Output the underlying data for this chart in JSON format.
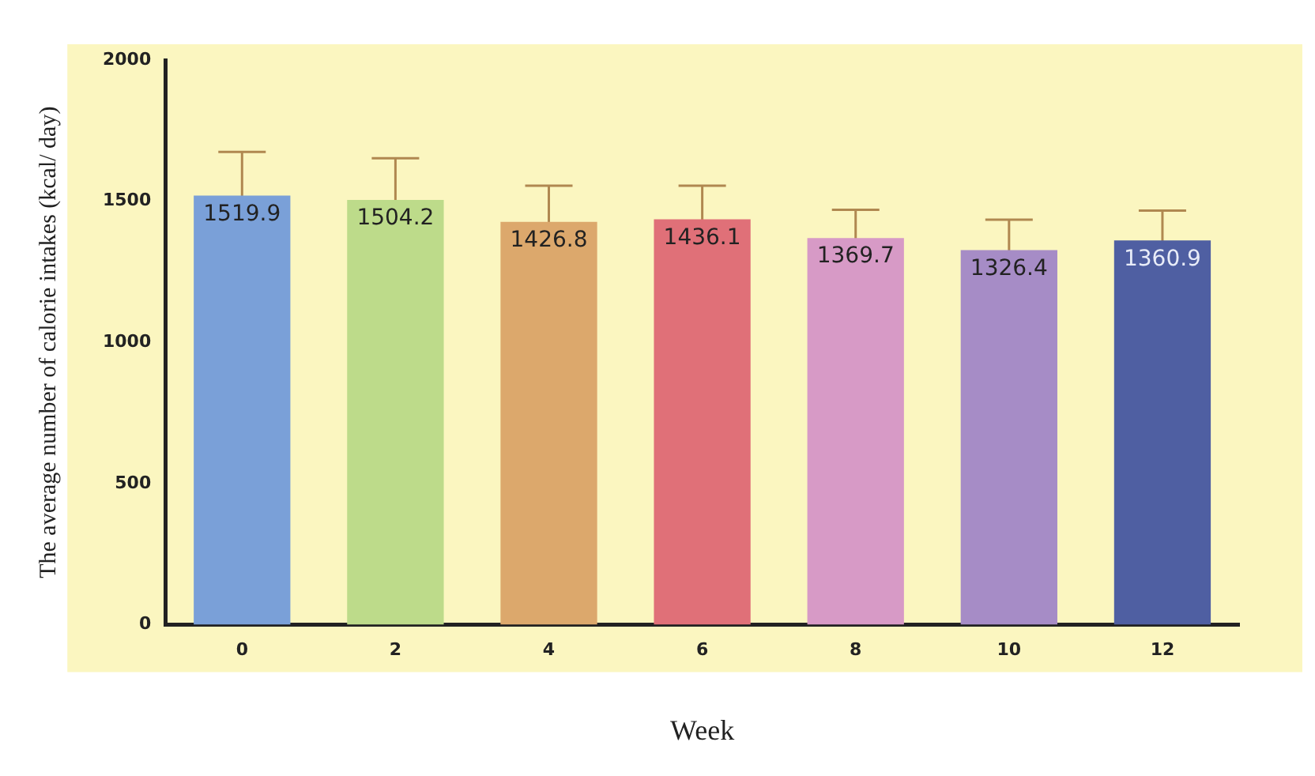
{
  "chart_data": {
    "type": "bar",
    "xlabel": "Week",
    "ylabel": "The average number of calorie intakes (kcal/ day)",
    "categories": [
      "0",
      "2",
      "4",
      "6",
      "8",
      "10",
      "12"
    ],
    "values": [
      1519.9,
      1504.2,
      1426.8,
      1436.1,
      1369.7,
      1326.4,
      1360.9
    ],
    "errors": [
      155,
      148,
      128,
      119,
      100,
      108,
      106
    ],
    "colors": [
      "#7aa0d8",
      "#bddb8a",
      "#dca86c",
      "#e07078",
      "#d79ac6",
      "#a68cc6",
      "#4f5fa2"
    ],
    "ylim": [
      0,
      2000
    ],
    "yticks": [
      0,
      500,
      1000,
      1500,
      2000
    ],
    "data_labels": true,
    "grid": false,
    "legend": false
  }
}
